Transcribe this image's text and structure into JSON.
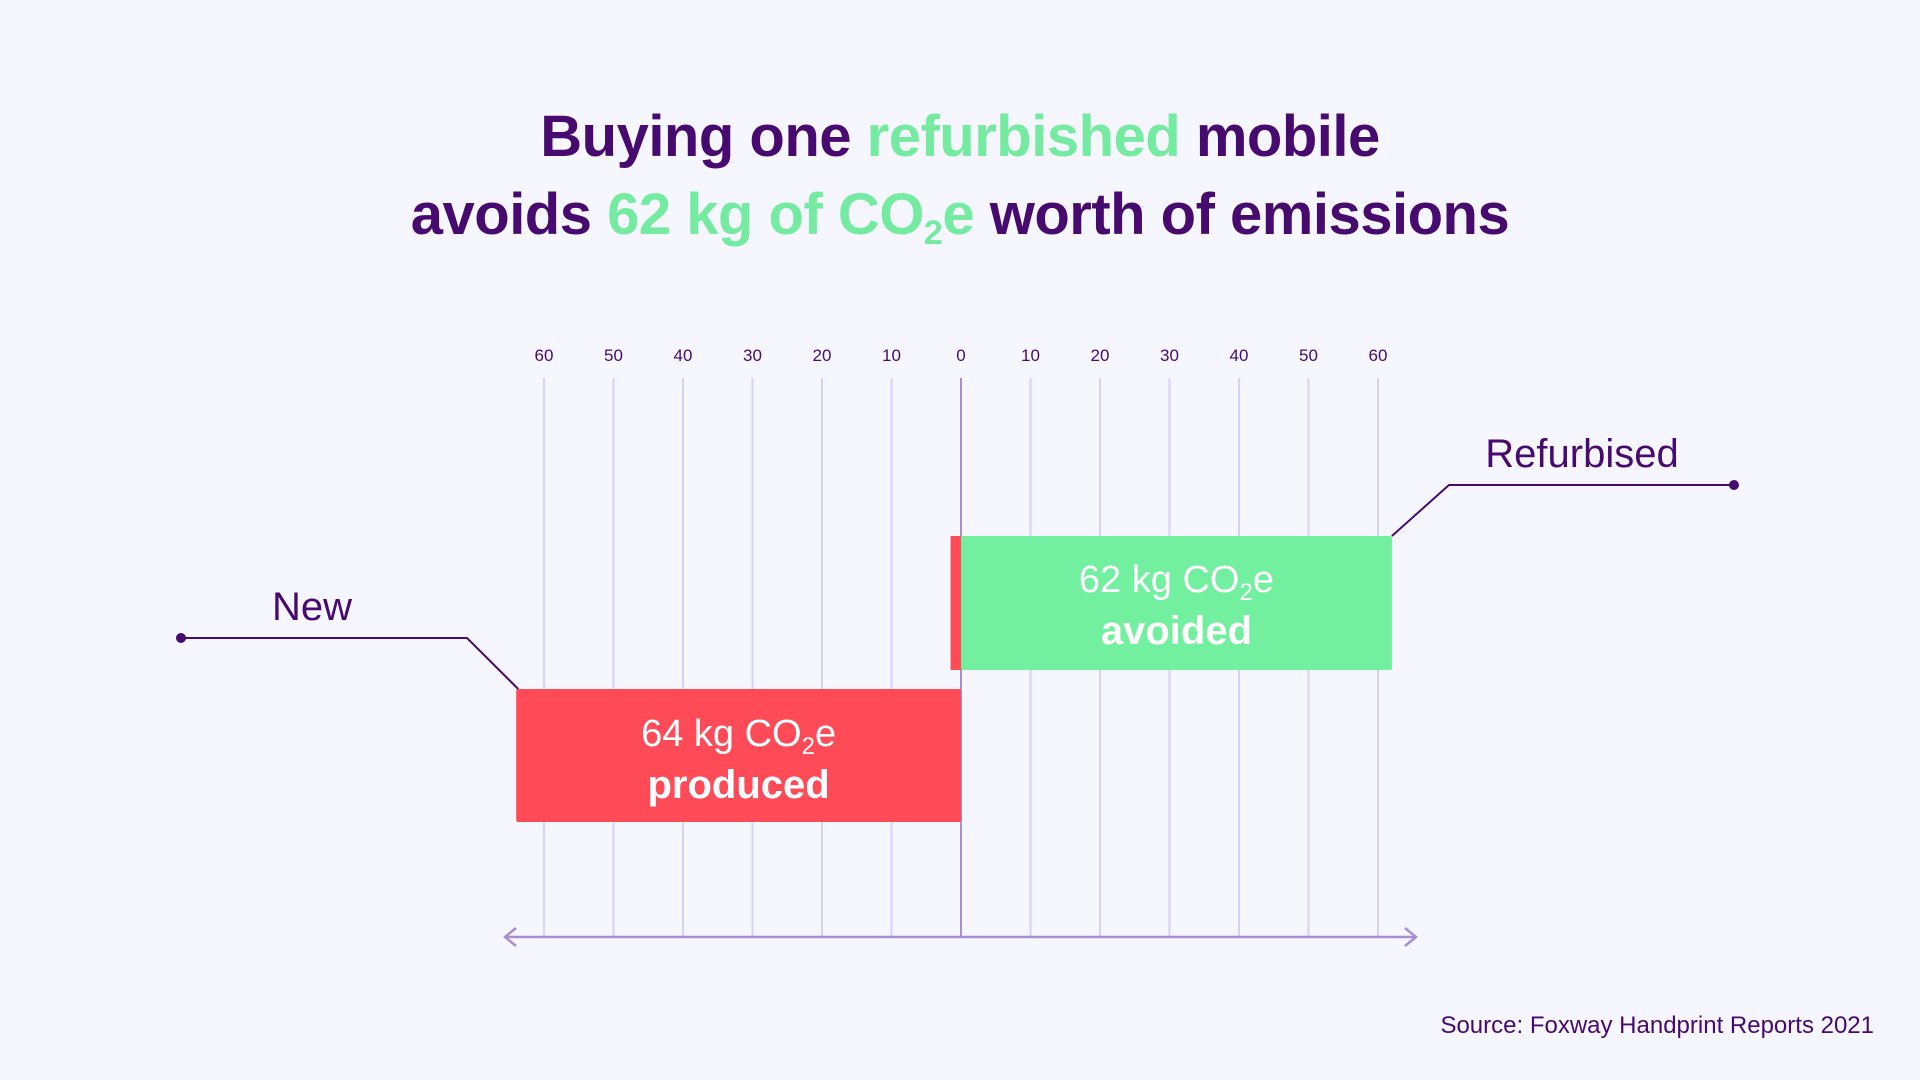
{
  "title": {
    "line1": {
      "a": "Buying one ",
      "highlight": "refurbished",
      "b": " mobile"
    },
    "line2": {
      "a": "avoids ",
      "highlight_pre": "62 kg of CO",
      "highlight_sub": "2",
      "highlight_post": "e",
      "b": " worth of emissions"
    }
  },
  "colors": {
    "text": "#470a6f",
    "highlight": "#74eba0",
    "produced": "#ff4b57",
    "avoided": "#72ef9f",
    "grid": "#d4d1fa",
    "axis": "#a98fcf"
  },
  "chart_data": {
    "type": "bar",
    "orientation": "horizontal-diverging",
    "unit": "kg CO2e",
    "xlim": [
      -60,
      60
    ],
    "tick_labels": [
      "60",
      "50",
      "40",
      "30",
      "20",
      "10",
      "0",
      "10",
      "20",
      "30",
      "40",
      "50",
      "60"
    ],
    "tick_values": [
      -60,
      -50,
      -40,
      -30,
      -20,
      -10,
      0,
      10,
      20,
      30,
      40,
      50,
      60
    ],
    "grid": true,
    "series": [
      {
        "name": "New",
        "value": -64,
        "color": "#ff4b57",
        "label_value": "64 kg CO",
        "label_sub": "2",
        "label_post": "e",
        "label_word": "produced"
      },
      {
        "name": "Refurbised",
        "value": 62,
        "color": "#72ef9f",
        "offset_red": -1.5,
        "label_value": "62 kg CO",
        "label_sub": "2",
        "label_post": "e",
        "label_word": "avoided"
      }
    ]
  },
  "source": "Source: Foxway Handprint Reports 2021"
}
